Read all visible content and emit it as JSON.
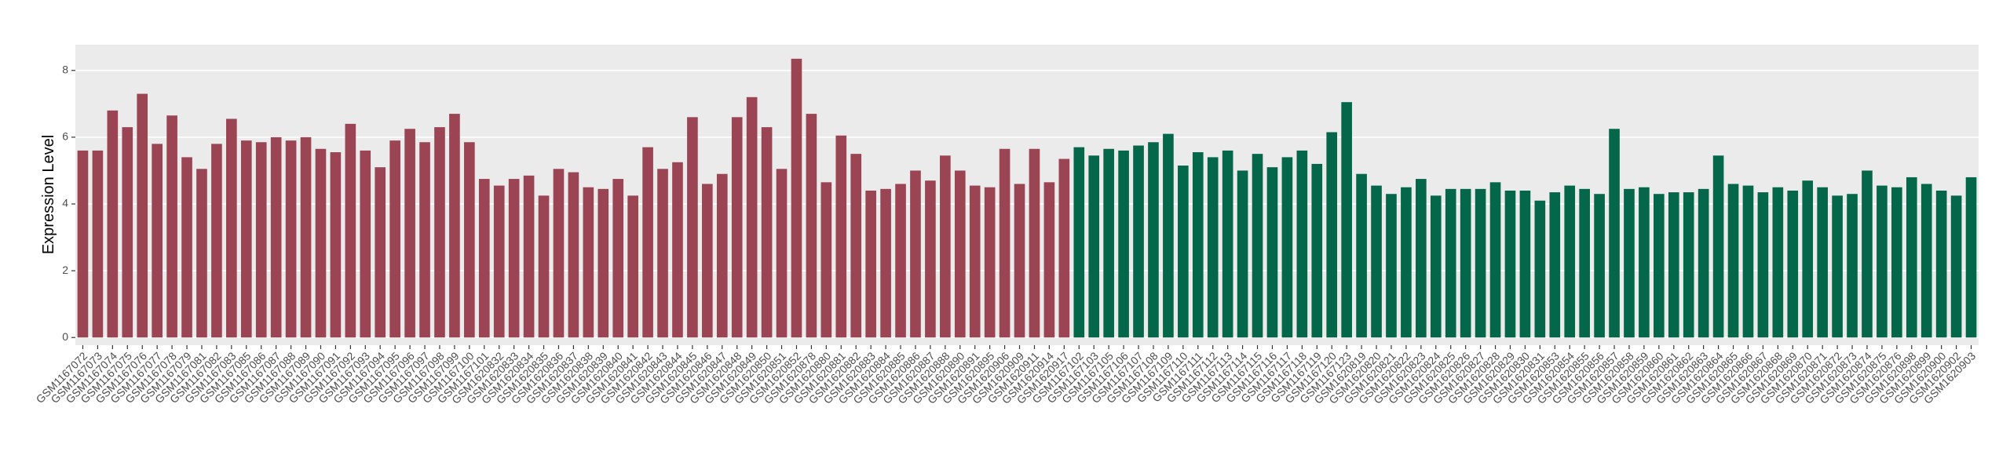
{
  "chart_data": {
    "type": "bar",
    "y_label": "Expression Level",
    "categories": [
      "GSM1167072",
      "GSM1167073",
      "GSM1167074",
      "GSM1167075",
      "GSM1167076",
      "GSM1167077",
      "GSM1167078",
      "GSM1167079",
      "GSM1167081",
      "GSM1167082",
      "GSM1167083",
      "GSM1167085",
      "GSM1167086",
      "GSM1167087",
      "GSM1167088",
      "GSM1167089",
      "GSM1167090",
      "GSM1167091",
      "GSM1167092",
      "GSM1167093",
      "GSM1167094",
      "GSM1167095",
      "GSM1167096",
      "GSM1167097",
      "GSM1167098",
      "GSM1167099",
      "GSM1167100",
      "GSM1167101",
      "GSM1620832",
      "GSM1620833",
      "GSM1620834",
      "GSM1620835",
      "GSM1620836",
      "GSM1620837",
      "GSM1620838",
      "GSM1620839",
      "GSM1620840",
      "GSM1620841",
      "GSM1620842",
      "GSM1620843",
      "GSM1620844",
      "GSM1620845",
      "GSM1620846",
      "GSM1620847",
      "GSM1620848",
      "GSM1620849",
      "GSM1620850",
      "GSM1620851",
      "GSM1620852",
      "GSM1620878",
      "GSM1620880",
      "GSM1620881",
      "GSM1620882",
      "GSM1620883",
      "GSM1620884",
      "GSM1620885",
      "GSM1620886",
      "GSM1620887",
      "GSM1620888",
      "GSM1620890",
      "GSM1620891",
      "GSM1620895",
      "GSM1620906",
      "GSM1620909",
      "GSM1620911",
      "GSM1620914",
      "GSM1620917",
      "GSM1167102",
      "GSM1167103",
      "GSM1167105",
      "GSM1167106",
      "GSM1167107",
      "GSM1167108",
      "GSM1167109",
      "GSM1167110",
      "GSM1167111",
      "GSM1167112",
      "GSM1167113",
      "GSM1167114",
      "GSM1167115",
      "GSM1167116",
      "GSM1167117",
      "GSM1167118",
      "GSM1167119",
      "GSM1167120",
      "GSM1167123",
      "GSM1620819",
      "GSM1620820",
      "GSM1620821",
      "GSM1620822",
      "GSM1620823",
      "GSM1620824",
      "GSM1620825",
      "GSM1620826",
      "GSM1620827",
      "GSM1620828",
      "GSM1620829",
      "GSM1620830",
      "GSM1620831",
      "GSM1620853",
      "GSM1620854",
      "GSM1620855",
      "GSM1620856",
      "GSM1620857",
      "GSM1620858",
      "GSM1620859",
      "GSM1620860",
      "GSM1620861",
      "GSM1620862",
      "GSM1620863",
      "GSM1620864",
      "GSM1620865",
      "GSM1620866",
      "GSM1620867",
      "GSM1620868",
      "GSM1620869",
      "GSM1620870",
      "GSM1620871",
      "GSM1620872",
      "GSM1620873",
      "GSM1620874",
      "GSM1620875",
      "GSM1620876",
      "GSM1620898",
      "GSM1620899",
      "GSM1620900",
      "GSM1620902",
      "GSM1620903"
    ],
    "series": [
      {
        "color": "#9b4453",
        "values": [
          5.6,
          5.6,
          6.8,
          6.3,
          7.3,
          5.8,
          6.65,
          5.4,
          5.05,
          5.8,
          6.55,
          5.9,
          5.85,
          6.0,
          5.9,
          6.0,
          5.65,
          5.55,
          6.4,
          5.6,
          5.1,
          5.9,
          6.25,
          5.85,
          6.3,
          6.7,
          5.85,
          4.75,
          4.55,
          4.75,
          4.85,
          4.25,
          5.05,
          4.95,
          4.5,
          4.45,
          4.75,
          4.25,
          5.7,
          5.05,
          5.25,
          6.6,
          4.6,
          4.9,
          6.6,
          7.2,
          6.3,
          5.05,
          8.35,
          6.7,
          4.65,
          6.05,
          5.5,
          4.4,
          4.45,
          4.6,
          5.0,
          4.7,
          5.45,
          5.0,
          4.55,
          4.5,
          5.65,
          4.6,
          5.65,
          4.65,
          5.35,
          null,
          null,
          null,
          null,
          null,
          null,
          null,
          null,
          null,
          null,
          null,
          null,
          null,
          null,
          null,
          null,
          null,
          null,
          null,
          null,
          null,
          null,
          null,
          null,
          null,
          null,
          null,
          null,
          null,
          null,
          null,
          null,
          null,
          null,
          null,
          null,
          null,
          null,
          null,
          null,
          null,
          null,
          null,
          null,
          null,
          null,
          null,
          null,
          null,
          null,
          null,
          null,
          null,
          null,
          null,
          null,
          null,
          null,
          null,
          null,
          null
        ]
      },
      {
        "color": "#05674a",
        "values": [
          null,
          null,
          null,
          null,
          null,
          null,
          null,
          null,
          null,
          null,
          null,
          null,
          null,
          null,
          null,
          null,
          null,
          null,
          null,
          null,
          null,
          null,
          null,
          null,
          null,
          null,
          null,
          null,
          null,
          null,
          null,
          null,
          null,
          null,
          null,
          null,
          null,
          null,
          null,
          null,
          null,
          null,
          null,
          null,
          null,
          null,
          null,
          null,
          null,
          null,
          null,
          null,
          null,
          null,
          null,
          null,
          null,
          null,
          null,
          null,
          null,
          null,
          null,
          null,
          null,
          null,
          null,
          5.7,
          5.45,
          5.65,
          5.6,
          5.75,
          5.85,
          6.1,
          5.15,
          5.55,
          5.4,
          5.6,
          5.0,
          5.5,
          5.1,
          5.4,
          5.6,
          5.2,
          6.15,
          7.05,
          4.9,
          4.55,
          4.3,
          4.5,
          4.75,
          4.25,
          4.45,
          4.45,
          4.45,
          4.65,
          4.4,
          4.4,
          4.1,
          4.35,
          4.55,
          4.45,
          4.3,
          6.25,
          4.45,
          4.5,
          4.3,
          4.35,
          4.35,
          4.45,
          5.45,
          4.6,
          4.55,
          4.35,
          4.5,
          4.4,
          4.7,
          4.5,
          4.25,
          4.3,
          5.0,
          4.55,
          4.5,
          4.8,
          4.6,
          4.4,
          4.25,
          4.8
        ]
      }
    ],
    "ylim": [
      -0.23,
      8.77
    ],
    "yticks": [
      0,
      2,
      4,
      6,
      8
    ],
    "grid": true
  }
}
